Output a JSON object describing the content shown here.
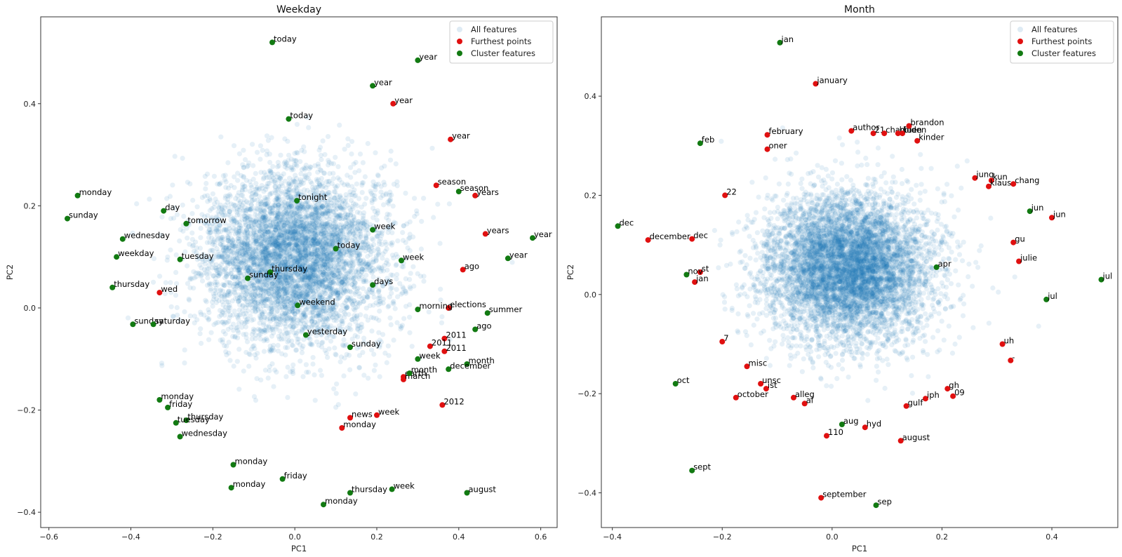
{
  "colors": {
    "background_points": "#1f77b4",
    "furthest": "#e01010",
    "cluster": "#127a12"
  },
  "chart_data": [
    {
      "type": "scatter",
      "title": "Weekday",
      "xlabel": "PC1",
      "ylabel": "PC2",
      "xlim": [
        -0.62,
        0.64
      ],
      "ylim": [
        -0.43,
        0.57
      ],
      "xticks": [
        -0.6,
        -0.4,
        -0.2,
        0.0,
        0.2,
        0.4,
        0.6
      ],
      "xtick_labels": [
        "−0.6",
        "−0.4",
        "−0.2",
        "0.0",
        "0.2",
        "0.4",
        "0.6"
      ],
      "yticks": [
        -0.4,
        -0.2,
        0.0,
        0.2,
        0.4
      ],
      "ytick_labels": [
        "−0.4",
        "−0.2",
        "0.0",
        "0.2",
        "0.4"
      ],
      "background_cloud": {
        "center": [
          0.0,
          0.1
        ],
        "spread": [
          0.115,
          0.085
        ],
        "count": 5000,
        "seed": 7
      },
      "legend": {
        "position": "top-right",
        "entries": [
          "All features",
          "Furthest points",
          "Cluster features"
        ]
      },
      "series": [
        {
          "name": "Furthest points",
          "points": [
            {
              "label": "year",
              "x": 0.24,
              "y": 0.4
            },
            {
              "label": "year",
              "x": 0.38,
              "y": 0.33
            },
            {
              "label": "season",
              "x": 0.345,
              "y": 0.24
            },
            {
              "label": "years",
              "x": 0.44,
              "y": 0.22
            },
            {
              "label": "years",
              "x": 0.465,
              "y": 0.145
            },
            {
              "label": "ago",
              "x": 0.41,
              "y": 0.075
            },
            {
              "label": "wed",
              "x": -0.33,
              "y": 0.03
            },
            {
              "label": "elections",
              "x": 0.375,
              "y": 0.0
            },
            {
              "label": "2011",
              "x": 0.365,
              "y": -0.06
            },
            {
              "label": "2011",
              "x": 0.33,
              "y": -0.075
            },
            {
              "label": "2011",
              "x": 0.365,
              "y": -0.085
            },
            {
              "label": "earth",
              "x": 0.265,
              "y": -0.135
            },
            {
              "label": "march",
              "x": 0.265,
              "y": -0.14
            },
            {
              "label": "2012",
              "x": 0.36,
              "y": -0.19
            },
            {
              "label": "news",
              "x": 0.135,
              "y": -0.215
            },
            {
              "label": "week",
              "x": 0.2,
              "y": -0.21
            },
            {
              "label": "monday",
              "x": 0.115,
              "y": -0.235
            }
          ]
        },
        {
          "name": "Cluster features",
          "points": [
            {
              "label": "today",
              "x": -0.055,
              "y": 0.52
            },
            {
              "label": "year",
              "x": 0.3,
              "y": 0.485
            },
            {
              "label": "year",
              "x": 0.19,
              "y": 0.435
            },
            {
              "label": "today",
              "x": -0.015,
              "y": 0.37
            },
            {
              "label": "monday",
              "x": -0.53,
              "y": 0.22
            },
            {
              "label": "sunday",
              "x": -0.555,
              "y": 0.175
            },
            {
              "label": "tonight",
              "x": 0.005,
              "y": 0.21
            },
            {
              "label": "day",
              "x": -0.32,
              "y": 0.19
            },
            {
              "label": "tomorrow",
              "x": -0.265,
              "y": 0.165
            },
            {
              "label": "season",
              "x": 0.4,
              "y": 0.228
            },
            {
              "label": "week",
              "x": 0.19,
              "y": 0.153
            },
            {
              "label": "wednesday",
              "x": -0.42,
              "y": 0.135
            },
            {
              "label": "year",
              "x": 0.58,
              "y": 0.137
            },
            {
              "label": "today",
              "x": 0.1,
              "y": 0.116
            },
            {
              "label": "weekday",
              "x": -0.435,
              "y": 0.1
            },
            {
              "label": "tuesday",
              "x": -0.28,
              "y": 0.095
            },
            {
              "label": "week",
              "x": 0.26,
              "y": 0.093
            },
            {
              "label": "year",
              "x": 0.52,
              "y": 0.097
            },
            {
              "label": "thursday",
              "x": -0.06,
              "y": 0.07
            },
            {
              "label": "sunday",
              "x": -0.115,
              "y": 0.058
            },
            {
              "label": "thursday",
              "x": -0.445,
              "y": 0.04
            },
            {
              "label": "days",
              "x": 0.19,
              "y": 0.045
            },
            {
              "label": "weekend",
              "x": 0.007,
              "y": 0.005
            },
            {
              "label": "morning",
              "x": 0.3,
              "y": -0.003
            },
            {
              "label": "summer",
              "x": 0.47,
              "y": -0.01
            },
            {
              "label": "sunday",
              "x": -0.395,
              "y": -0.032
            },
            {
              "label": "saturday",
              "x": -0.345,
              "y": -0.032
            },
            {
              "label": "yesterday",
              "x": 0.027,
              "y": -0.053
            },
            {
              "label": "ago",
              "x": 0.44,
              "y": -0.042
            },
            {
              "label": "sunday",
              "x": 0.135,
              "y": -0.077
            },
            {
              "label": "week",
              "x": 0.3,
              "y": -0.1
            },
            {
              "label": "month",
              "x": 0.42,
              "y": -0.11
            },
            {
              "label": "month",
              "x": 0.28,
              "y": -0.128
            },
            {
              "label": "december",
              "x": 0.375,
              "y": -0.12
            },
            {
              "label": "monday",
              "x": -0.33,
              "y": -0.18
            },
            {
              "label": "friday",
              "x": -0.31,
              "y": -0.195
            },
            {
              "label": "thursday",
              "x": -0.265,
              "y": -0.22
            },
            {
              "label": "tuesday",
              "x": -0.29,
              "y": -0.225
            },
            {
              "label": "wednesday",
              "x": -0.28,
              "y": -0.252
            },
            {
              "label": "monday",
              "x": -0.15,
              "y": -0.307
            },
            {
              "label": "friday",
              "x": -0.03,
              "y": -0.335
            },
            {
              "label": "monday",
              "x": -0.155,
              "y": -0.352
            },
            {
              "label": "week",
              "x": 0.237,
              "y": -0.355
            },
            {
              "label": "thursday",
              "x": 0.135,
              "y": -0.362
            },
            {
              "label": "august",
              "x": 0.42,
              "y": -0.362
            },
            {
              "label": "monday",
              "x": 0.07,
              "y": -0.385
            }
          ]
        }
      ]
    },
    {
      "type": "scatter",
      "title": "Month",
      "xlabel": "PC1",
      "ylabel": "PC2",
      "xlim": [
        -0.42,
        0.52
      ],
      "ylim": [
        -0.47,
        0.56
      ],
      "xticks": [
        -0.4,
        -0.2,
        0.0,
        0.2,
        0.4
      ],
      "xtick_labels": [
        "−0.4",
        "−0.2",
        "0.0",
        "0.2",
        "0.4"
      ],
      "yticks": [
        -0.4,
        -0.2,
        0.0,
        0.2,
        0.4
      ],
      "ytick_labels": [
        "−0.4",
        "−0.2",
        "0.0",
        "0.2",
        "0.4"
      ],
      "background_cloud": {
        "center": [
          0.03,
          0.055
        ],
        "spread": [
          0.075,
          0.075
        ],
        "count": 6000,
        "seed": 11
      },
      "legend": {
        "position": "top-right",
        "entries": [
          "All features",
          "Furthest points",
          "Cluster features"
        ]
      },
      "series": [
        {
          "name": "Furthest points",
          "points": [
            {
              "label": "january",
              "x": -0.03,
              "y": 0.425
            },
            {
              "label": "february",
              "x": -0.118,
              "y": 0.322
            },
            {
              "label": "author",
              "x": 0.035,
              "y": 0.33
            },
            {
              "label": "21",
              "x": 0.075,
              "y": 0.325
            },
            {
              "label": "chad",
              "x": 0.095,
              "y": 0.325
            },
            {
              "label": "biden",
              "x": 0.12,
              "y": 0.325
            },
            {
              "label": "biden",
              "x": 0.128,
              "y": 0.325
            },
            {
              "label": "brandon",
              "x": 0.14,
              "y": 0.34
            },
            {
              "label": "kinder",
              "x": 0.155,
              "y": 0.31
            },
            {
              "label": "oner",
              "x": -0.118,
              "y": 0.293
            },
            {
              "label": "22",
              "x": -0.195,
              "y": 0.2
            },
            {
              "label": "jung",
              "x": 0.26,
              "y": 0.235
            },
            {
              "label": "kun",
              "x": 0.29,
              "y": 0.23
            },
            {
              "label": "klaus",
              "x": 0.285,
              "y": 0.218
            },
            {
              "label": "chang",
              "x": 0.33,
              "y": 0.223
            },
            {
              "label": "jun",
              "x": 0.4,
              "y": 0.155
            },
            {
              "label": "december",
              "x": -0.335,
              "y": 0.11
            },
            {
              "label": "dec",
              "x": -0.255,
              "y": 0.112
            },
            {
              "label": "gu",
              "x": 0.33,
              "y": 0.105
            },
            {
              "label": "julie",
              "x": 0.34,
              "y": 0.067
            },
            {
              "label": "st",
              "x": -0.24,
              "y": 0.045
            },
            {
              "label": "jan",
              "x": -0.25,
              "y": 0.025
            },
            {
              "label": "7",
              "x": -0.2,
              "y": -0.095
            },
            {
              "label": "uh",
              "x": 0.31,
              "y": -0.1
            },
            {
              "label": "-",
              "x": 0.325,
              "y": -0.133
            },
            {
              "label": "misc",
              "x": -0.155,
              "y": -0.145
            },
            {
              "label": "unsc",
              "x": -0.13,
              "y": -0.18
            },
            {
              "label": "ist",
              "x": -0.12,
              "y": -0.19
            },
            {
              "label": "gh",
              "x": 0.21,
              "y": -0.19
            },
            {
              "label": "09",
              "x": 0.22,
              "y": -0.205
            },
            {
              "label": "october",
              "x": -0.175,
              "y": -0.208
            },
            {
              "label": "alleg",
              "x": -0.07,
              "y": -0.208
            },
            {
              "label": "iph",
              "x": 0.17,
              "y": -0.21
            },
            {
              "label": "al",
              "x": -0.05,
              "y": -0.22
            },
            {
              "label": "gulf",
              "x": 0.135,
              "y": -0.225
            },
            {
              "label": "hyd",
              "x": 0.06,
              "y": -0.268
            },
            {
              "label": "110",
              "x": -0.01,
              "y": -0.285
            },
            {
              "label": "august",
              "x": 0.125,
              "y": -0.295
            },
            {
              "label": "september",
              "x": -0.02,
              "y": -0.41
            }
          ]
        },
        {
          "name": "Cluster features",
          "points": [
            {
              "label": "jan",
              "x": -0.095,
              "y": 0.508
            },
            {
              "label": "feb",
              "x": -0.24,
              "y": 0.305
            },
            {
              "label": "dec",
              "x": -0.39,
              "y": 0.138
            },
            {
              "label": "jun",
              "x": 0.36,
              "y": 0.168
            },
            {
              "label": "apr",
              "x": 0.19,
              "y": 0.055
            },
            {
              "label": "nov",
              "x": -0.265,
              "y": 0.04
            },
            {
              "label": "jul",
              "x": 0.49,
              "y": 0.03
            },
            {
              "label": "jul",
              "x": 0.39,
              "y": -0.01
            },
            {
              "label": "oct",
              "x": -0.285,
              "y": -0.18
            },
            {
              "label": "aug",
              "x": 0.018,
              "y": -0.262
            },
            {
              "label": "sept",
              "x": -0.255,
              "y": -0.355
            },
            {
              "label": "sep",
              "x": 0.08,
              "y": -0.425
            }
          ]
        }
      ]
    }
  ]
}
